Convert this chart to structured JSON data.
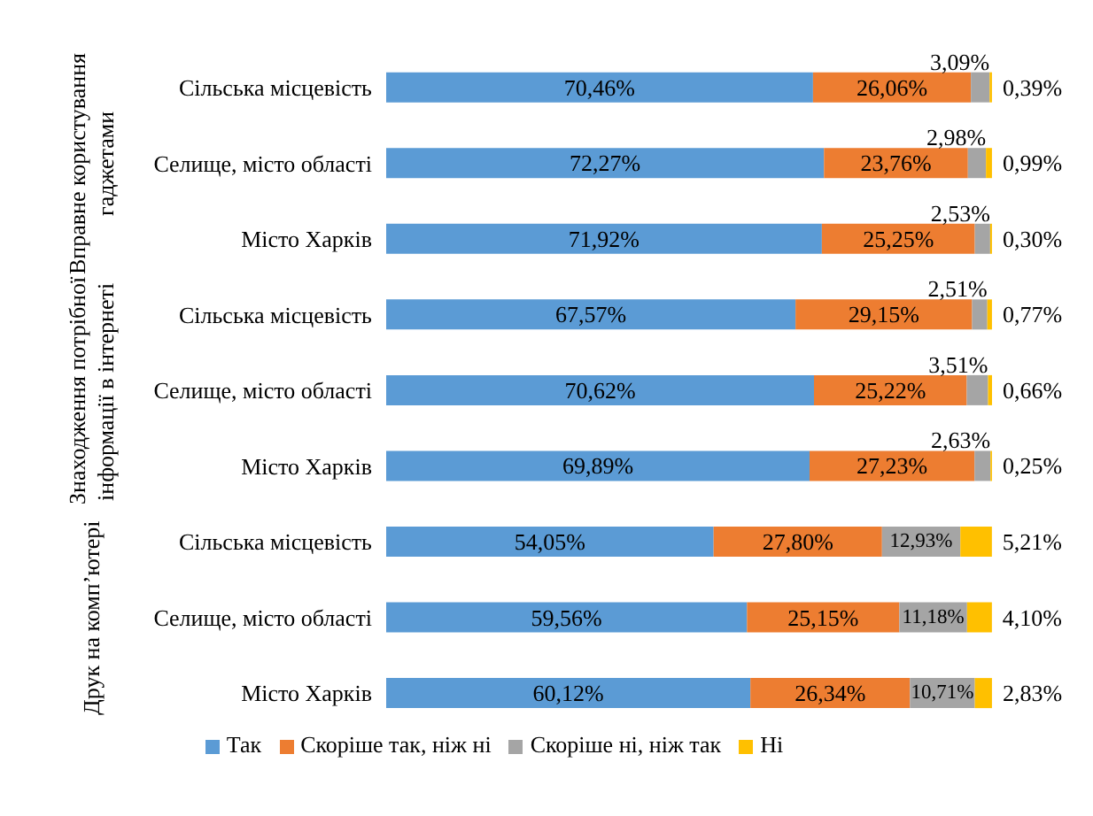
{
  "chart_data": {
    "type": "bar",
    "orientation": "horizontal",
    "stacked": true,
    "categories": [
      "Сільська місцевість",
      "Селище, місто області",
      "Місто Харків",
      "Сільська місцевість",
      "Селище, місто області",
      "Місто Харків",
      "Сільська місцевість",
      "Селище, місто області",
      "Місто Харків"
    ],
    "series": [
      {
        "name": "Так",
        "color": "#5b9bd5",
        "values": [
          70.46,
          72.27,
          71.92,
          67.57,
          70.62,
          69.89,
          54.05,
          59.56,
          60.12
        ],
        "value_labels": [
          "70,46%",
          "72,27%",
          "71,92%",
          "67,57%",
          "70,62%",
          "69,89%",
          "54,05%",
          "59,56%",
          "60,12%"
        ]
      },
      {
        "name": "Скоріше так, ніж ні",
        "color": "#ed7d31",
        "values": [
          26.06,
          23.76,
          25.25,
          29.15,
          25.22,
          27.23,
          27.8,
          25.15,
          26.34
        ],
        "value_labels": [
          "26,06%",
          "23,76%",
          "25,25%",
          "29,15%",
          "25,22%",
          "27,23%",
          "27,80%",
          "25,15%",
          "26,34%"
        ]
      },
      {
        "name": "Скоріше ні, ніж так",
        "color": "#a5a5a5",
        "values": [
          3.09,
          2.98,
          2.53,
          2.51,
          3.51,
          2.63,
          12.93,
          11.18,
          10.71
        ],
        "value_labels": [
          "3,09%",
          "2,98%",
          "2,53%",
          "2,51%",
          "3,51%",
          "2,63%",
          "12,93%",
          "11,18%",
          "10,71%"
        ]
      },
      {
        "name": "Ні",
        "color": "#ffc000",
        "values": [
          0.39,
          0.99,
          0.3,
          0.77,
          0.66,
          0.25,
          5.21,
          4.1,
          2.83
        ],
        "value_labels": [
          "0,39%",
          "0,99%",
          "0,30%",
          "0,77%",
          "0,66%",
          "0,25%",
          "5,21%",
          "4,10%",
          "2,83%"
        ]
      }
    ],
    "annotations": [
      "Вправне користування гаджетами",
      "Знаходження потрібної інформації в інтернеті",
      "Друк на комп’ютері"
    ],
    "tick_labels": "y",
    "legend": "bottom",
    "grid": false
  }
}
